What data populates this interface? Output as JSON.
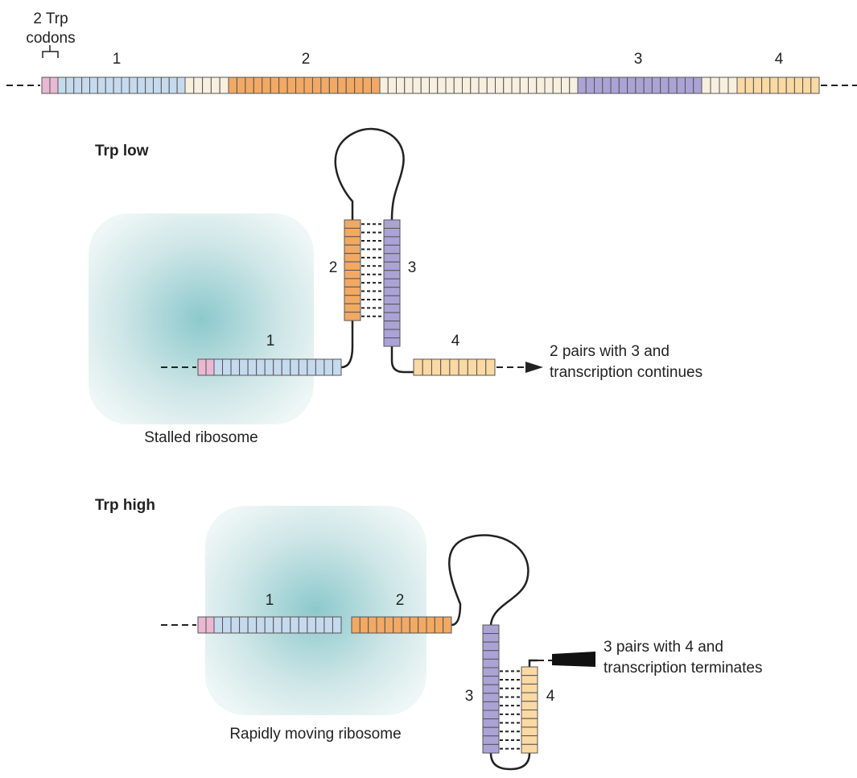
{
  "top": {
    "codon_label": [
      "2 Trp",
      "codons"
    ],
    "regions": [
      "1",
      "2",
      "3",
      "4"
    ]
  },
  "panels": [
    {
      "title": "Trp low",
      "labels": [
        "1",
        "2",
        "3",
        "4"
      ],
      "note": [
        "2 pairs with 3 and",
        "transcription continues"
      ],
      "ribosome": "Stalled ribosome"
    },
    {
      "title": "Trp high",
      "labels": [
        "1",
        "2",
        "3",
        "4"
      ],
      "note": [
        "3 pairs with 4 and",
        "transcription terminates"
      ],
      "ribosome": "Rapidly moving ribosome"
    }
  ]
}
